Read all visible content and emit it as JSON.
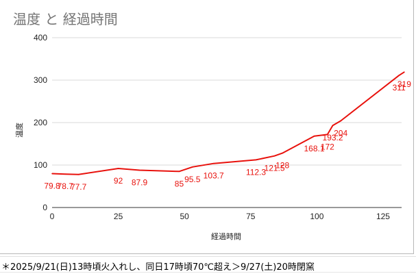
{
  "chart_data": {
    "type": "line",
    "title": "温度 と 経過時間",
    "xlabel": "経過時間",
    "ylabel": "温度",
    "xlim": [
      0,
      132
    ],
    "ylim": [
      0,
      400
    ],
    "x_ticks": [
      0,
      25,
      50,
      75,
      100,
      125
    ],
    "y_ticks": [
      0,
      100,
      200,
      300,
      400
    ],
    "grid": "horizontal",
    "legend": "none",
    "line_color": "#e8110c",
    "series": [
      {
        "points": [
          {
            "x": 0,
            "y": 79.8,
            "label": "79.8"
          },
          {
            "x": 5,
            "y": 78.7,
            "label": "78.7"
          },
          {
            "x": 10,
            "y": 77.7,
            "label": "77.7"
          },
          {
            "x": 25,
            "y": 92,
            "label": "92"
          },
          {
            "x": 33,
            "y": 87.9,
            "label": "87.9"
          },
          {
            "x": 48,
            "y": 85,
            "label": "85"
          },
          {
            "x": 53,
            "y": 95.5,
            "label": "95.5"
          },
          {
            "x": 61,
            "y": 103.7,
            "label": "103.7"
          },
          {
            "x": 77,
            "y": 112.3,
            "label": "112.3"
          },
          {
            "x": 84,
            "y": 121.5,
            "label": "121.5"
          },
          {
            "x": 87,
            "y": 128,
            "label": "128"
          },
          {
            "x": 99,
            "y": 168.1,
            "label": "168.1"
          },
          {
            "x": 104,
            "y": 172,
            "label": "172"
          },
          {
            "x": 106,
            "y": 193.2,
            "label": "193.2"
          },
          {
            "x": 109,
            "y": 204,
            "label": "204"
          },
          {
            "x": 131,
            "y": 311,
            "label": "311"
          },
          {
            "x": 133,
            "y": 319,
            "label": "319"
          }
        ]
      }
    ]
  },
  "footnote": "＊2025/9/21(日)13時頃火入れし、同日17時頃70℃超え＞9/27(土)20時閉窯"
}
